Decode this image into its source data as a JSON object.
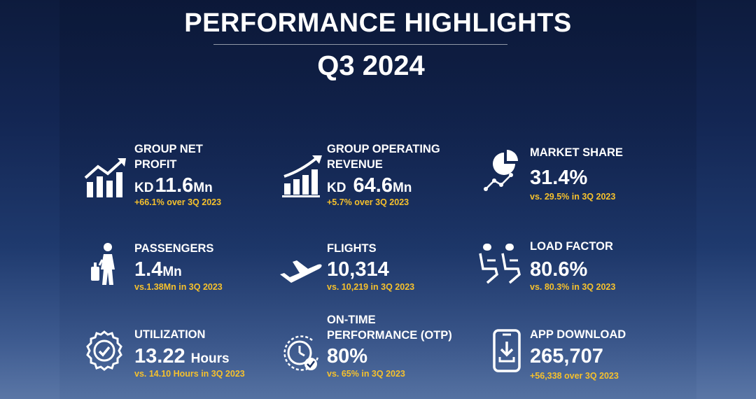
{
  "header": {
    "title": "PERFORMANCE HIGHLIGHTS",
    "period": "Q3 2024"
  },
  "accent_color": "#f6c12c",
  "stats": {
    "net_profit": {
      "label_l1": "GROUP NET",
      "label_l2": "PROFIT",
      "currency": "KD",
      "value": "11.6",
      "unit": "Mn",
      "change": "+66.1% over 3Q 2023",
      "icon": "line-chart-rising-icon"
    },
    "revenue": {
      "label_l1": "GROUP OPERATING",
      "label_l2": "REVENUE",
      "currency": "KD",
      "value": "64.6",
      "unit": "Mn",
      "change": "+5.7% over 3Q 2023",
      "icon": "bar-chart-arrow-icon"
    },
    "market_share": {
      "label": "MARKET SHARE",
      "value": "31.4%",
      "change": "vs. 29.5% in 3Q 2023",
      "icon": "pie-chart-icon"
    },
    "passengers": {
      "label": "PASSENGERS",
      "value": "1.4",
      "unit": "Mn",
      "change": "vs.1.38Mn in 3Q 2023",
      "icon": "traveler-luggage-icon"
    },
    "flights": {
      "label": "FLIGHTS",
      "value": "10,314",
      "change": "vs. 10,219 in 3Q 2023",
      "icon": "airplane-takeoff-icon"
    },
    "load_factor": {
      "label": "LOAD FACTOR",
      "value": "80.6%",
      "change": "vs. 80.3% in 3Q 2023",
      "icon": "aircraft-seats-icon"
    },
    "utilization": {
      "label": "UTILIZATION",
      "value": "13.22",
      "unit": "Hours",
      "change": "vs. 14.10 Hours in 3Q 2023",
      "icon": "gear-clock-icon"
    },
    "otp": {
      "label_l1": "ON-TIME",
      "label_l2": "PERFORMANCE (OTP)",
      "value": "80%",
      "change": "vs. 65% in 3Q 2023",
      "icon": "clock-check-icon"
    },
    "app_download": {
      "label": "APP DOWNLOAD",
      "value": "265,707",
      "change": "+56,338 over 3Q 2023",
      "icon": "phone-download-icon"
    }
  }
}
